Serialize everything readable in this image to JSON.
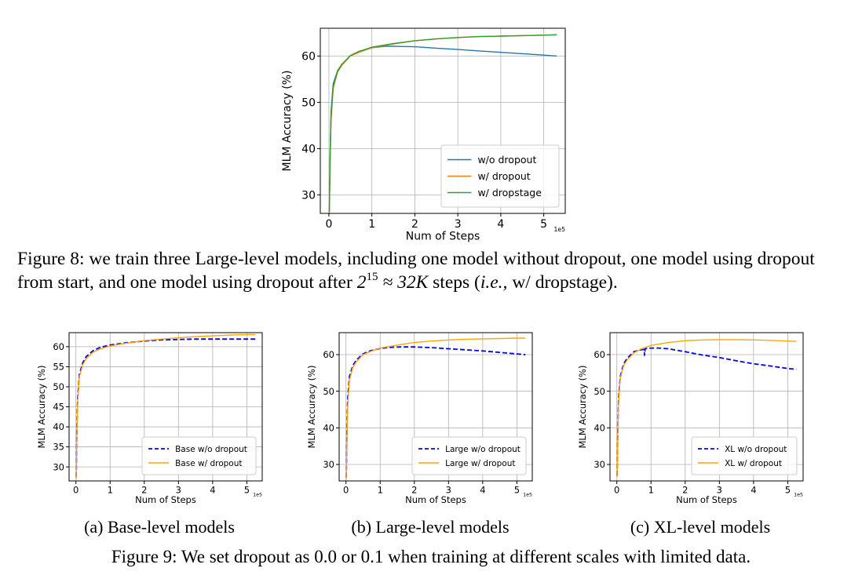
{
  "figure8": {
    "caption_label": "Figure 8:",
    "caption_part1": "we train three Large-level models, including one model without dropout, one model using dropout from start, and one model using dropout after",
    "caption_math_base": "2",
    "caption_math_exp": "15",
    "caption_math_rest": "≈ 32K",
    "caption_part2": "steps (",
    "caption_ie": "i.e.,",
    "caption_part3": "w/ dropstage)."
  },
  "figure9": {
    "caption": "Figure 9: We set dropout as 0.0 or 0.1 when training at different scales with limited data.",
    "subcaptions": [
      "(a) Base-level models",
      "(b) Large-level models",
      "(c) XL-level models"
    ]
  },
  "chart_data": [
    {
      "id": "fig8",
      "type": "line",
      "xlabel": "Num of Steps",
      "ylabel": "MLM Accuracy (%)",
      "x_multiplier_label": "1e5",
      "xlim": [
        -0.2,
        5.5
      ],
      "ylim": [
        26,
        66
      ],
      "xticks": [
        0,
        1,
        2,
        3,
        4,
        5
      ],
      "yticks": [
        30,
        40,
        50,
        60
      ],
      "grid": true,
      "legend_position": "lower-right",
      "series": [
        {
          "name": "w/o dropout",
          "color": "#1f77b4",
          "style": "solid",
          "x": [
            0.01,
            0.03,
            0.05,
            0.1,
            0.2,
            0.3,
            0.5,
            0.7,
            1.0,
            1.3,
            1.5,
            2.0,
            2.5,
            3.0,
            3.5,
            4.0,
            4.5,
            5.0,
            5.3
          ],
          "y": [
            26.5,
            40,
            48,
            54,
            56.8,
            58.2,
            60,
            61,
            61.8,
            62.1,
            62.1,
            62,
            61.7,
            61.4,
            61.1,
            60.8,
            60.5,
            60.2,
            60
          ]
        },
        {
          "name": "w/ dropout",
          "color": "#ff7f0e",
          "style": "solid",
          "x": [
            0.01,
            0.03,
            0.05,
            0.1,
            0.2,
            0.3,
            0.5,
            0.7,
            1.0,
            1.5,
            2.0,
            2.5,
            3.0,
            3.5,
            4.0,
            4.5,
            5.0,
            5.3
          ],
          "y": [
            26,
            38,
            46,
            53,
            56.5,
            58,
            60,
            60.8,
            61.8,
            62.6,
            63.3,
            63.7,
            64,
            64.2,
            64.3,
            64.4,
            64.5,
            64.6
          ]
        },
        {
          "name": "w/ dropstage",
          "color": "#2ca02c",
          "style": "solid",
          "x": [
            0.01,
            0.03,
            0.05,
            0.1,
            0.2,
            0.3,
            0.5,
            0.7,
            1.0,
            1.5,
            2.0,
            2.5,
            3.0,
            3.5,
            4.0,
            4.5,
            5.0,
            5.3
          ],
          "y": [
            26.3,
            39,
            47,
            53.5,
            56.7,
            58.2,
            60.1,
            61,
            61.9,
            62.7,
            63.3,
            63.7,
            64,
            64.2,
            64.3,
            64.4,
            64.5,
            64.6
          ]
        }
      ]
    },
    {
      "id": "fig9a",
      "type": "line",
      "xlabel": "Num of Steps",
      "ylabel": "MLM Accuracy (%)",
      "x_multiplier_label": "1e5",
      "xlim": [
        -0.2,
        5.45
      ],
      "ylim": [
        26.5,
        63.5
      ],
      "xticks": [
        0,
        1,
        2,
        3,
        4,
        5
      ],
      "yticks": [
        30,
        35,
        40,
        45,
        50,
        55,
        60
      ],
      "grid": true,
      "legend_position": "lower-right",
      "series": [
        {
          "name": "Base w/o dropout",
          "color": "#0000ff",
          "style": "dashed",
          "x": [
            0.01,
            0.03,
            0.05,
            0.1,
            0.2,
            0.3,
            0.5,
            0.7,
            1.0,
            1.5,
            2.0,
            2.5,
            3.0,
            3.5,
            4.0,
            4.5,
            5.0,
            5.25
          ],
          "y": [
            27.5,
            40,
            47,
            53,
            56,
            57.5,
            59,
            59.8,
            60.4,
            61,
            61.4,
            61.7,
            61.8,
            61.9,
            61.9,
            61.9,
            61.9,
            61.9
          ]
        },
        {
          "name": "Base w/ dropout",
          "color": "#ffa500",
          "style": "solid",
          "x": [
            0.01,
            0.03,
            0.05,
            0.1,
            0.2,
            0.3,
            0.5,
            0.7,
            1.0,
            1.5,
            2.0,
            2.5,
            3.0,
            3.5,
            4.0,
            4.5,
            5.0,
            5.25
          ],
          "y": [
            27,
            39,
            46,
            52.5,
            55.5,
            57,
            58.6,
            59.4,
            60.2,
            60.9,
            61.5,
            61.9,
            62.2,
            62.5,
            62.7,
            62.9,
            63,
            63
          ]
        }
      ]
    },
    {
      "id": "fig9b",
      "type": "line",
      "xlabel": "Num of Steps",
      "ylabel": "MLM Accuracy (%)",
      "x_multiplier_label": "1e5",
      "xlim": [
        -0.2,
        5.45
      ],
      "ylim": [
        25.5,
        66
      ],
      "xticks": [
        0,
        1,
        2,
        3,
        4,
        5
      ],
      "yticks": [
        30,
        40,
        50,
        60
      ],
      "grid": true,
      "legend_position": "lower-right",
      "series": [
        {
          "name": "Large w/o dropout",
          "color": "#0000ff",
          "style": "dashed",
          "x": [
            0.01,
            0.03,
            0.05,
            0.1,
            0.2,
            0.3,
            0.5,
            0.7,
            1.0,
            1.3,
            1.6,
            2.0,
            2.5,
            3.0,
            3.5,
            4.0,
            4.5,
            5.0,
            5.25
          ],
          "y": [
            26.5,
            40,
            48,
            54,
            57,
            58.5,
            60.2,
            61,
            61.7,
            62,
            62.1,
            62.1,
            61.9,
            61.6,
            61.3,
            61,
            60.6,
            60.2,
            60
          ]
        },
        {
          "name": "Large w/ dropout",
          "color": "#ffa500",
          "style": "solid",
          "x": [
            0.01,
            0.03,
            0.05,
            0.1,
            0.2,
            0.3,
            0.5,
            0.7,
            1.0,
            1.5,
            2.0,
            2.5,
            3.0,
            3.5,
            4.0,
            4.5,
            5.0,
            5.25
          ],
          "y": [
            26,
            38,
            46,
            53,
            56.5,
            58,
            60,
            60.8,
            61.8,
            62.6,
            63.3,
            63.7,
            64,
            64.2,
            64.3,
            64.4,
            64.5,
            64.5
          ]
        }
      ]
    },
    {
      "id": "fig9c",
      "type": "line",
      "xlabel": "Num of Steps",
      "ylabel": "MLM Accuracy (%)",
      "x_multiplier_label": "1e5",
      "xlim": [
        -0.2,
        5.45
      ],
      "ylim": [
        25.5,
        66
      ],
      "xticks": [
        0,
        1,
        2,
        3,
        4,
        5
      ],
      "yticks": [
        30,
        40,
        50,
        60
      ],
      "grid": true,
      "legend_position": "lower-right",
      "series": [
        {
          "name": "XL w/o dropout",
          "color": "#0000ff",
          "style": "dashed",
          "x": [
            0.01,
            0.03,
            0.05,
            0.1,
            0.2,
            0.3,
            0.5,
            0.7,
            0.8,
            0.81,
            0.83,
            1.0,
            1.2,
            1.5,
            2.0,
            2.5,
            3.0,
            3.5,
            4.0,
            4.5,
            5.0,
            5.25
          ],
          "y": [
            27,
            40,
            48,
            54,
            57.5,
            59,
            60.8,
            61.3,
            61.4,
            59.8,
            61.6,
            61.8,
            61.8,
            61.6,
            60.8,
            59.9,
            59.2,
            58.3,
            57.5,
            56.9,
            56.2,
            56
          ]
        },
        {
          "name": "XL w/ dropout",
          "color": "#ffa500",
          "style": "solid",
          "x": [
            0.01,
            0.03,
            0.05,
            0.1,
            0.2,
            0.3,
            0.5,
            0.7,
            1.0,
            1.5,
            2.0,
            2.5,
            3.0,
            3.5,
            4.0,
            4.5,
            5.0,
            5.25
          ],
          "y": [
            26.5,
            39,
            47,
            53.5,
            57,
            58.5,
            60.5,
            61.5,
            62.5,
            63.3,
            63.8,
            64,
            64.1,
            64.1,
            64,
            63.9,
            63.7,
            63.6
          ]
        }
      ]
    }
  ]
}
